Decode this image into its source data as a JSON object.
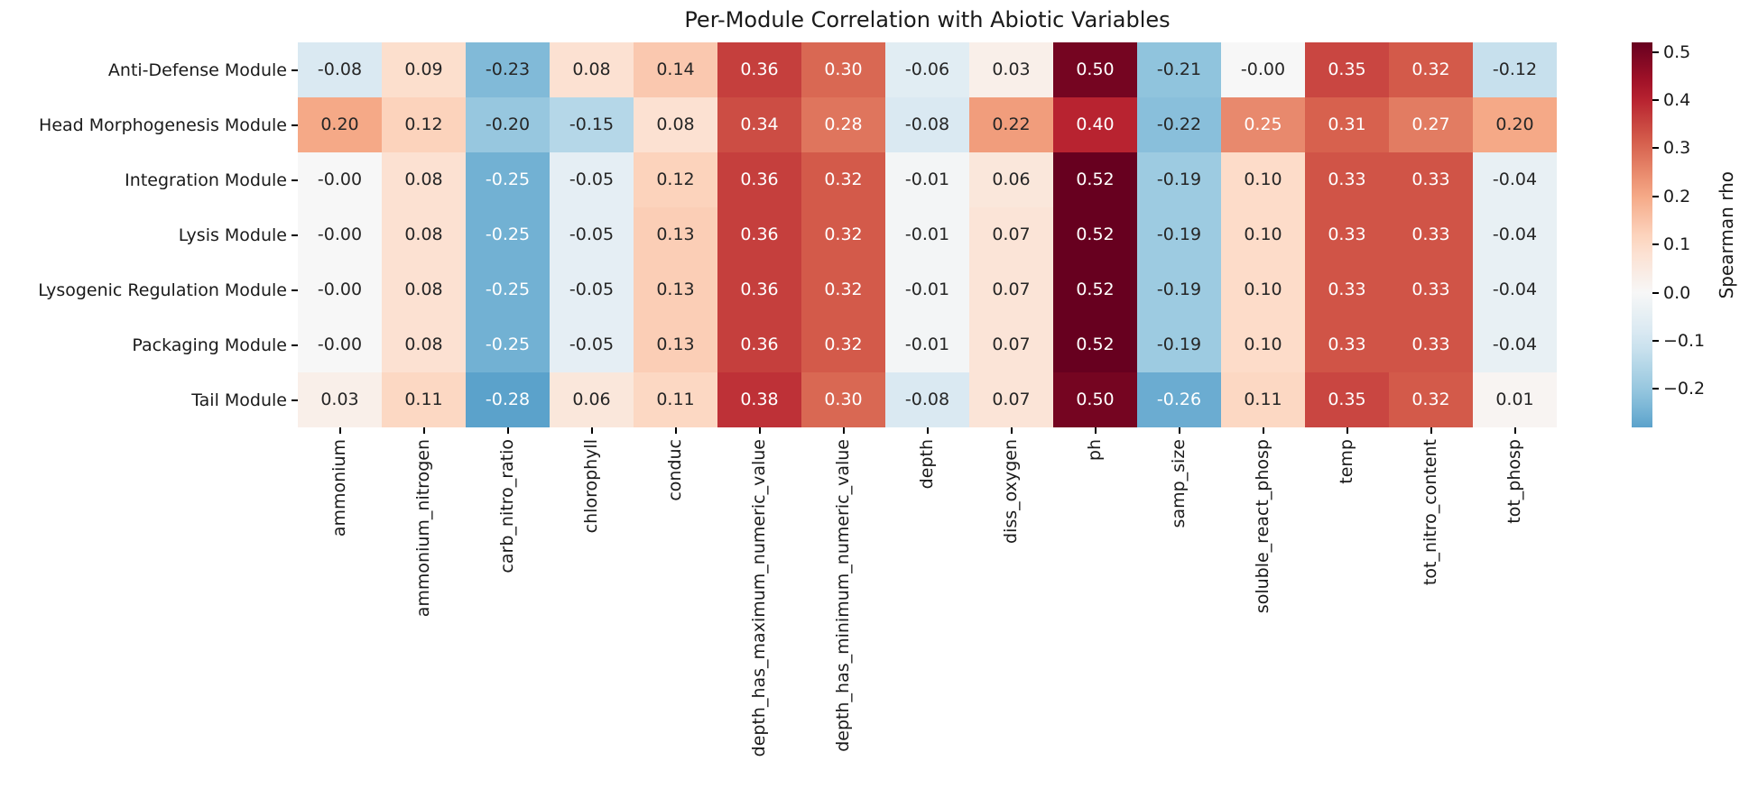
{
  "chart_data": {
    "type": "heatmap",
    "title": "Per-Module Correlation with Abiotic Variables",
    "rows": [
      "Anti-Defense Module",
      "Head Morphogenesis Module",
      "Integration Module",
      "Lysis Module",
      "Lysogenic Regulation Module",
      "Packaging Module",
      "Tail Module"
    ],
    "columns": [
      "ammonium",
      "ammonium_nitrogen",
      "carb_nitro_ratio",
      "chlorophyll",
      "conduc",
      "depth_has_maximum_numeric_value",
      "depth_has_minimum_numeric_value",
      "depth",
      "diss_oxygen",
      "ph",
      "samp_size",
      "soluble_react_phosp",
      "temp",
      "tot_nitro_content",
      "tot_phosp"
    ],
    "values": [
      [
        "-0.08",
        "0.09",
        "-0.23",
        "0.08",
        "0.14",
        "0.36",
        "0.30",
        "-0.06",
        "0.03",
        "0.50",
        "-0.21",
        "-0.00",
        "0.35",
        "0.32",
        "-0.12"
      ],
      [
        "0.20",
        "0.12",
        "-0.20",
        "-0.15",
        "0.08",
        "0.34",
        "0.28",
        "-0.08",
        "0.22",
        "0.40",
        "-0.22",
        "0.25",
        "0.31",
        "0.27",
        "0.20"
      ],
      [
        "-0.00",
        "0.08",
        "-0.25",
        "-0.05",
        "0.12",
        "0.36",
        "0.32",
        "-0.01",
        "0.06",
        "0.52",
        "-0.19",
        "0.10",
        "0.33",
        "0.33",
        "-0.04"
      ],
      [
        "-0.00",
        "0.08",
        "-0.25",
        "-0.05",
        "0.13",
        "0.36",
        "0.32",
        "-0.01",
        "0.07",
        "0.52",
        "-0.19",
        "0.10",
        "0.33",
        "0.33",
        "-0.04"
      ],
      [
        "-0.00",
        "0.08",
        "-0.25",
        "-0.05",
        "0.13",
        "0.36",
        "0.32",
        "-0.01",
        "0.07",
        "0.52",
        "-0.19",
        "0.10",
        "0.33",
        "0.33",
        "-0.04"
      ],
      [
        "-0.00",
        "0.08",
        "-0.25",
        "-0.05",
        "0.13",
        "0.36",
        "0.32",
        "-0.01",
        "0.07",
        "0.52",
        "-0.19",
        "0.10",
        "0.33",
        "0.33",
        "-0.04"
      ],
      [
        "0.03",
        "0.11",
        "-0.28",
        "0.06",
        "0.11",
        "0.38",
        "0.30",
        "-0.08",
        "0.07",
        "0.50",
        "-0.26",
        "0.11",
        "0.35",
        "0.32",
        "0.01"
      ]
    ],
    "colorbar": {
      "label": "Spearman rho",
      "tick_labels": [
        "0.5",
        "0.4",
        "0.3",
        "0.2",
        "0.1",
        "0.0",
        "−0.1",
        "−0.2"
      ],
      "tick_values": [
        0.5,
        0.4,
        0.3,
        0.2,
        0.1,
        0.0,
        -0.1,
        -0.2
      ],
      "range": [
        -0.28,
        0.52
      ]
    },
    "colormap": "RdBu_r",
    "colormap_stops": [
      "#053061",
      "#2166ac",
      "#4393c3",
      "#92c5de",
      "#d1e5f0",
      "#f7f7f7",
      "#fddbc7",
      "#f4a582",
      "#d6604d",
      "#b2182b",
      "#67001f"
    ],
    "color_absmax": 0.52,
    "annotation_colors": {
      "light_text": "#ffffff",
      "dark_text": "#262626"
    }
  }
}
